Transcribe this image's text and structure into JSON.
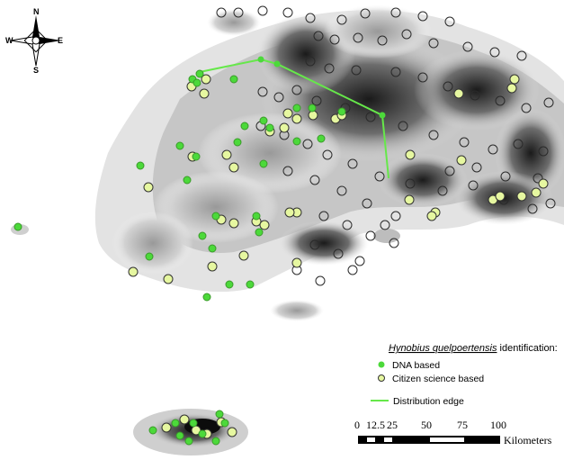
{
  "map_type": "species occurrence map on grayscale elevation relief",
  "compass": {
    "north": "N",
    "south": "S",
    "east": "E",
    "west": "W"
  },
  "legend": {
    "title_italic": "Hynobius quelpoertensis",
    "title_rest": " identification:",
    "dna": "DNA based",
    "citizen": "Citizen science based",
    "edge": "Distribution edge"
  },
  "scalebar": {
    "ticks": [
      "0",
      "12.5",
      "25",
      "50",
      "75",
      "100"
    ],
    "unit": "Kilometers"
  },
  "colors": {
    "dna_fill": "#4cd93a",
    "citizen_fill": "#e6f7a0",
    "citizen_outline": "#333333",
    "edge_line": "#66e84a"
  }
}
